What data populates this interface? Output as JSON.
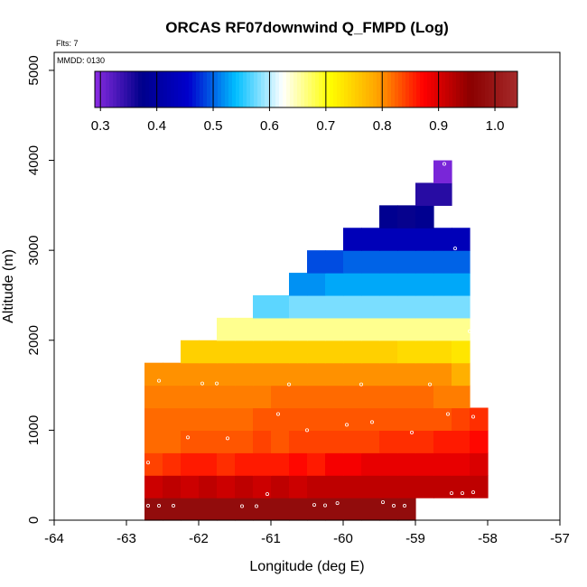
{
  "chart_data": {
    "type": "heatmap",
    "title": "ORCAS RF07downwind Q_FMPD (Log)",
    "xlabel": "Longitude (deg E)",
    "ylabel": "Altitude (m)",
    "xlim": [
      -64,
      -57
    ],
    "ylim": [
      0,
      5200
    ],
    "x_ticks": [
      "-64",
      "-63",
      "-62",
      "-61",
      "-60",
      "-59",
      "-58",
      "-57"
    ],
    "y_ticks": [
      "0",
      "1000",
      "2000",
      "3000",
      "4000",
      "5000"
    ],
    "flights_label": "Flts: 7",
    "date_label": "MMDD: 0130",
    "colorbar": {
      "range": [
        0.29,
        1.04
      ],
      "tick_values": [
        0.3,
        0.4,
        0.5,
        0.6,
        0.7,
        0.8,
        0.9,
        1.0
      ],
      "tick_labels": [
        "0.3",
        "0.4",
        "0.5",
        "0.6",
        "0.7",
        "0.8",
        "0.9",
        "1.0"
      ],
      "colors": [
        "#8a2be2",
        "#00008b",
        "#0000cd",
        "#00bfff",
        "#ffffff",
        "#ffff00",
        "#ffa500",
        "#ff0000",
        "#8b0000",
        "#a52a2a"
      ]
    },
    "cell_height_m": 250,
    "rows": [
      {
        "alt": 125,
        "lon_min": -62.75,
        "lon_max": -59.0,
        "values": [
          0.98,
          0.98,
          0.98,
          0.98,
          0.98,
          0.98,
          0.98,
          0.98,
          0.98,
          0.98,
          0.98,
          0.98,
          0.98,
          0.98,
          0.98
        ]
      },
      {
        "alt": 375,
        "lon_min": -62.75,
        "lon_max": -58.0,
        "values": [
          0.91,
          0.92,
          0.91,
          0.92,
          0.91,
          0.92,
          0.91,
          0.92,
          0.91,
          0.92,
          0.92,
          0.92,
          0.92,
          0.92,
          0.92,
          0.92,
          0.92,
          0.92,
          0.92
        ]
      },
      {
        "alt": 625,
        "lon_min": -62.75,
        "lon_max": -58.0,
        "values": [
          0.84,
          0.85,
          0.86,
          0.86,
          0.85,
          0.86,
          0.86,
          0.86,
          0.87,
          0.86,
          0.88,
          0.88,
          0.89,
          0.89,
          0.89,
          0.89,
          0.89,
          0.89,
          0.9
        ]
      },
      {
        "alt": 875,
        "lon_min": -62.75,
        "lon_max": -58.0,
        "values": [
          0.82,
          0.82,
          0.83,
          0.83,
          0.83,
          0.83,
          0.84,
          0.83,
          0.84,
          0.84,
          0.84,
          0.84,
          0.84,
          0.85,
          0.85,
          0.85,
          0.86,
          0.86,
          0.87
        ]
      },
      {
        "alt": 1125,
        "lon_min": -62.75,
        "lon_max": -58.0,
        "values": [
          0.82,
          0.82,
          0.82,
          0.82,
          0.82,
          0.82,
          0.83,
          0.83,
          0.83,
          0.83,
          0.83,
          0.83,
          0.83,
          0.83,
          0.83,
          0.83,
          0.83,
          0.84,
          0.85
        ]
      },
      {
        "alt": 1375,
        "lon_min": -62.75,
        "lon_max": -58.25,
        "values": [
          0.81,
          0.81,
          0.81,
          0.81,
          0.81,
          0.81,
          0.81,
          0.82,
          0.82,
          0.82,
          0.82,
          0.82,
          0.82,
          0.82,
          0.82,
          0.82,
          0.81,
          0.81
        ]
      },
      {
        "alt": 1625,
        "lon_min": -62.75,
        "lon_max": -58.25,
        "values": [
          0.8,
          0.8,
          0.8,
          0.8,
          0.8,
          0.8,
          0.8,
          0.8,
          0.8,
          0.8,
          0.8,
          0.8,
          0.8,
          0.8,
          0.8,
          0.8,
          0.8,
          0.78
        ]
      },
      {
        "alt": 1875,
        "lon_min": -62.25,
        "lon_max": -58.25,
        "values": [
          0.75,
          0.75,
          0.75,
          0.75,
          0.75,
          0.75,
          0.75,
          0.75,
          0.75,
          0.75,
          0.75,
          0.75,
          0.74,
          0.74,
          0.74,
          0.73
        ]
      },
      {
        "alt": 2125,
        "lon_min": -61.75,
        "lon_max": -58.25,
        "values": [
          0.66,
          0.66,
          0.66,
          0.66,
          0.66,
          0.66,
          0.66,
          0.66,
          0.66,
          0.66,
          0.66,
          0.66,
          0.66,
          0.66
        ]
      },
      {
        "alt": 2375,
        "lon_min": -61.25,
        "lon_max": -58.25,
        "values": [
          0.57,
          0.57,
          0.58,
          0.58,
          0.58,
          0.58,
          0.58,
          0.58,
          0.58,
          0.58,
          0.58,
          0.58
        ]
      },
      {
        "alt": 2625,
        "lon_min": -60.75,
        "lon_max": -58.25,
        "values": [
          0.52,
          0.52,
          0.53,
          0.53,
          0.53,
          0.53,
          0.53,
          0.53,
          0.53,
          0.53
        ]
      },
      {
        "alt": 2875,
        "lon_min": -60.5,
        "lon_max": -58.25,
        "values": [
          0.49,
          0.49,
          0.5,
          0.5,
          0.5,
          0.5,
          0.5,
          0.5,
          0.5
        ]
      },
      {
        "alt": 3125,
        "lon_min": -60.0,
        "lon_max": -58.25,
        "values": [
          0.43,
          0.43,
          0.43,
          0.43,
          0.43,
          0.43,
          0.43
        ]
      },
      {
        "alt": 3375,
        "lon_min": -59.5,
        "lon_max": -58.75,
        "values": [
          0.38,
          0.37,
          0.38
        ]
      },
      {
        "alt": 3625,
        "lon_min": -59.0,
        "lon_max": -58.5,
        "values": [
          0.35,
          0.35
        ]
      },
      {
        "alt": 3875,
        "lon_min": -58.75,
        "lon_max": -58.5,
        "values": [
          0.3
        ]
      }
    ],
    "observations": [
      [
        -62.7,
        160
      ],
      [
        -62.55,
        160
      ],
      [
        -62.35,
        160
      ],
      [
        -61.4,
        155
      ],
      [
        -61.2,
        155
      ],
      [
        -61.05,
        290
      ],
      [
        -60.4,
        170
      ],
      [
        -60.25,
        165
      ],
      [
        -60.08,
        190
      ],
      [
        -59.45,
        200
      ],
      [
        -59.3,
        160
      ],
      [
        -59.15,
        160
      ],
      [
        -58.5,
        300
      ],
      [
        -58.35,
        300
      ],
      [
        -58.2,
        310
      ],
      [
        -62.7,
        640
      ],
      [
        -62.15,
        920
      ],
      [
        -61.6,
        910
      ],
      [
        -60.5,
        1000
      ],
      [
        -59.95,
        1060
      ],
      [
        -59.6,
        1090
      ],
      [
        -59.05,
        975
      ],
      [
        -58.55,
        1180
      ],
      [
        -58.2,
        1150
      ],
      [
        -60.9,
        1180
      ],
      [
        -62.55,
        1550
      ],
      [
        -61.95,
        1520
      ],
      [
        -61.75,
        1520
      ],
      [
        -60.75,
        1510
      ],
      [
        -59.75,
        1510
      ],
      [
        -58.8,
        1510
      ],
      [
        -58.25,
        2100
      ],
      [
        -58.45,
        3020
      ],
      [
        -58.6,
        3960
      ]
    ]
  }
}
